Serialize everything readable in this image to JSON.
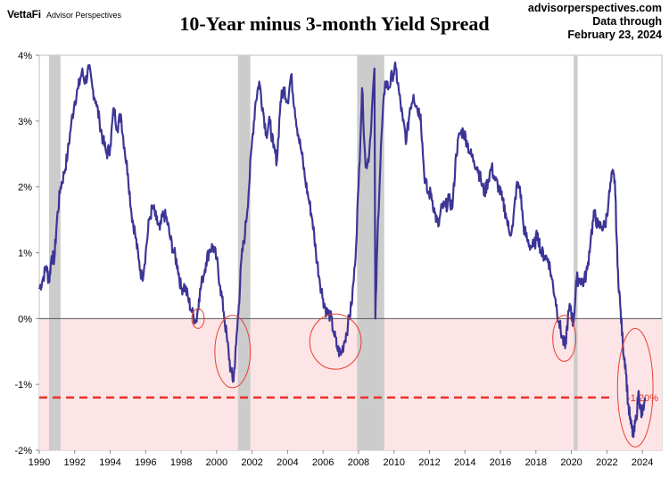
{
  "header": {
    "brand_logo": "VettaFi",
    "brand_sub": "Advisor Perspectives",
    "site": "advisorperspectives.com",
    "data_through_label": "Data through",
    "data_through_date": "February 23, 2024"
  },
  "chart_data": {
    "type": "line",
    "title": "10-Year minus 3-month Yield Spread",
    "xlabel": "",
    "ylabel": "",
    "xlim": [
      1990,
      2025.1
    ],
    "ylim": [
      -2,
      4
    ],
    "x_ticks": [
      "1990",
      "1992",
      "1994",
      "1996",
      "1998",
      "2000",
      "2002",
      "2004",
      "2006",
      "2008",
      "2010",
      "2012",
      "2014",
      "2016",
      "2018",
      "2020",
      "2022",
      "2024"
    ],
    "y_ticks": [
      {
        "value": 4,
        "label": "4%"
      },
      {
        "value": 3,
        "label": "3%"
      },
      {
        "value": 2,
        "label": "2%"
      },
      {
        "value": 1,
        "label": "1%"
      },
      {
        "value": 0,
        "label": "0%"
      },
      {
        "value": -1,
        "label": "-1%"
      },
      {
        "value": -2,
        "label": "-2%"
      }
    ],
    "grid": false,
    "recession_color": "#cccccc",
    "inversion_zone_color": "#fde4e6",
    "line_color": "#3c3596",
    "recessions": [
      {
        "start": 1990.55,
        "end": 1991.2
      },
      {
        "start": 2001.2,
        "end": 2001.9
      },
      {
        "start": 2007.92,
        "end": 2009.45
      },
      {
        "start": 2020.13,
        "end": 2020.35
      }
    ],
    "reference_line": {
      "value": -1.2,
      "label": "-1.20%",
      "color": "#e8312a"
    },
    "highlight_ellipses": [
      {
        "cx": 1998.95,
        "cy": 0,
        "rx": 0.35,
        "ry": 0.15
      },
      {
        "cx": 2000.9,
        "cy": -0.5,
        "rx": 1.0,
        "ry": 0.55
      },
      {
        "cx": 2006.7,
        "cy": -0.35,
        "rx": 1.45,
        "ry": 0.42
      },
      {
        "cx": 2019.6,
        "cy": -0.3,
        "rx": 0.65,
        "ry": 0.35
      },
      {
        "cx": 2023.6,
        "cy": -1.05,
        "rx": 1.0,
        "ry": 0.9
      }
    ],
    "series": [
      {
        "values": [
          [
            1990.0,
            0.45
          ],
          [
            1990.2,
            0.6
          ],
          [
            1990.4,
            0.8
          ],
          [
            1990.55,
            0.55
          ],
          [
            1990.7,
            0.95
          ],
          [
            1990.85,
            0.9
          ],
          [
            1991.0,
            1.5
          ],
          [
            1991.2,
            2.0
          ],
          [
            1991.4,
            2.2
          ],
          [
            1991.6,
            2.5
          ],
          [
            1991.8,
            2.95
          ],
          [
            1992.0,
            3.3
          ],
          [
            1992.2,
            3.5
          ],
          [
            1992.4,
            3.75
          ],
          [
            1992.6,
            3.6
          ],
          [
            1992.8,
            3.8
          ],
          [
            1993.0,
            3.5
          ],
          [
            1993.2,
            3.3
          ],
          [
            1993.4,
            3.0
          ],
          [
            1993.6,
            2.7
          ],
          [
            1993.8,
            2.5
          ],
          [
            1994.0,
            2.6
          ],
          [
            1994.2,
            3.2
          ],
          [
            1994.4,
            2.9
          ],
          [
            1994.6,
            3.1
          ],
          [
            1994.8,
            2.6
          ],
          [
            1995.0,
            2.2
          ],
          [
            1995.2,
            1.6
          ],
          [
            1995.4,
            1.3
          ],
          [
            1995.6,
            0.9
          ],
          [
            1995.8,
            0.6
          ],
          [
            1996.0,
            1.0
          ],
          [
            1996.2,
            1.5
          ],
          [
            1996.4,
            1.7
          ],
          [
            1996.6,
            1.5
          ],
          [
            1996.8,
            1.35
          ],
          [
            1997.0,
            1.6
          ],
          [
            1997.2,
            1.5
          ],
          [
            1997.4,
            1.2
          ],
          [
            1997.6,
            1.0
          ],
          [
            1997.8,
            0.8
          ],
          [
            1998.0,
            0.45
          ],
          [
            1998.2,
            0.5
          ],
          [
            1998.4,
            0.3
          ],
          [
            1998.6,
            0.1
          ],
          [
            1998.85,
            -0.05
          ],
          [
            1999.0,
            0.3
          ],
          [
            1999.2,
            0.6
          ],
          [
            1999.4,
            0.85
          ],
          [
            1999.6,
            1.05
          ],
          [
            1999.8,
            1.1
          ],
          [
            2000.0,
            0.9
          ],
          [
            2000.2,
            0.5
          ],
          [
            2000.4,
            0.1
          ],
          [
            2000.6,
            -0.35
          ],
          [
            2000.8,
            -0.8
          ],
          [
            2000.95,
            -0.95
          ],
          [
            2001.1,
            -0.4
          ],
          [
            2001.25,
            0.2
          ],
          [
            2001.4,
            0.9
          ],
          [
            2001.6,
            1.3
          ],
          [
            2001.8,
            1.9
          ],
          [
            2002.0,
            2.7
          ],
          [
            2002.2,
            3.3
          ],
          [
            2002.4,
            3.6
          ],
          [
            2002.6,
            3.2
          ],
          [
            2002.8,
            2.8
          ],
          [
            2003.0,
            3.0
          ],
          [
            2003.2,
            2.6
          ],
          [
            2003.4,
            2.4
          ],
          [
            2003.6,
            3.3
          ],
          [
            2003.8,
            3.5
          ],
          [
            2004.0,
            3.3
          ],
          [
            2004.2,
            3.7
          ],
          [
            2004.4,
            3.2
          ],
          [
            2004.6,
            2.8
          ],
          [
            2004.8,
            2.5
          ],
          [
            2005.0,
            2.1
          ],
          [
            2005.2,
            1.8
          ],
          [
            2005.4,
            1.5
          ],
          [
            2005.6,
            1.0
          ],
          [
            2005.8,
            0.6
          ],
          [
            2006.0,
            0.3
          ],
          [
            2006.2,
            0.1
          ],
          [
            2006.4,
            0.05
          ],
          [
            2006.6,
            -0.2
          ],
          [
            2006.8,
            -0.45
          ],
          [
            2007.0,
            -0.55
          ],
          [
            2007.2,
            -0.35
          ],
          [
            2007.4,
            -0.1
          ],
          [
            2007.6,
            0.2
          ],
          [
            2007.8,
            0.8
          ],
          [
            2008.0,
            2.0
          ],
          [
            2008.2,
            3.5
          ],
          [
            2008.4,
            2.3
          ],
          [
            2008.6,
            2.5
          ],
          [
            2008.9,
            3.8
          ],
          [
            2008.95,
            0.0
          ],
          [
            2009.1,
            1.5
          ],
          [
            2009.3,
            2.8
          ],
          [
            2009.5,
            3.6
          ],
          [
            2009.7,
            3.5
          ],
          [
            2009.9,
            3.7
          ],
          [
            2010.1,
            3.8
          ],
          [
            2010.3,
            3.4
          ],
          [
            2010.5,
            3.0
          ],
          [
            2010.7,
            2.7
          ],
          [
            2010.9,
            3.2
          ],
          [
            2011.1,
            3.4
          ],
          [
            2011.3,
            3.2
          ],
          [
            2011.5,
            3.1
          ],
          [
            2011.7,
            2.2
          ],
          [
            2011.9,
            1.9
          ],
          [
            2012.1,
            1.9
          ],
          [
            2012.3,
            1.6
          ],
          [
            2012.5,
            1.4
          ],
          [
            2012.7,
            1.7
          ],
          [
            2012.9,
            1.7
          ],
          [
            2013.1,
            1.8
          ],
          [
            2013.3,
            1.7
          ],
          [
            2013.5,
            2.5
          ],
          [
            2013.7,
            2.8
          ],
          [
            2013.9,
            2.85
          ],
          [
            2014.1,
            2.7
          ],
          [
            2014.3,
            2.5
          ],
          [
            2014.5,
            2.4
          ],
          [
            2014.7,
            2.3
          ],
          [
            2014.9,
            2.1
          ],
          [
            2015.1,
            1.9
          ],
          [
            2015.3,
            2.1
          ],
          [
            2015.5,
            2.3
          ],
          [
            2015.7,
            2.1
          ],
          [
            2015.9,
            2.0
          ],
          [
            2016.1,
            1.8
          ],
          [
            2016.3,
            1.6
          ],
          [
            2016.5,
            1.3
          ],
          [
            2016.7,
            1.4
          ],
          [
            2016.9,
            2.0
          ],
          [
            2017.1,
            2.0
          ],
          [
            2017.3,
            1.4
          ],
          [
            2017.5,
            1.2
          ],
          [
            2017.7,
            1.1
          ],
          [
            2017.9,
            1.1
          ],
          [
            2018.1,
            1.3
          ],
          [
            2018.3,
            1.0
          ],
          [
            2018.5,
            0.95
          ],
          [
            2018.7,
            0.9
          ],
          [
            2018.9,
            0.6
          ],
          [
            2019.1,
            0.3
          ],
          [
            2019.3,
            -0.05
          ],
          [
            2019.5,
            -0.3
          ],
          [
            2019.65,
            -0.45
          ],
          [
            2019.8,
            0.0
          ],
          [
            2019.95,
            0.2
          ],
          [
            2020.1,
            -0.1
          ],
          [
            2020.3,
            0.6
          ],
          [
            2020.5,
            0.6
          ],
          [
            2020.7,
            0.55
          ],
          [
            2020.9,
            0.75
          ],
          [
            2021.1,
            1.25
          ],
          [
            2021.3,
            1.6
          ],
          [
            2021.5,
            1.4
          ],
          [
            2021.7,
            1.4
          ],
          [
            2021.9,
            1.4
          ],
          [
            2022.1,
            1.8
          ],
          [
            2022.3,
            2.2
          ],
          [
            2022.45,
            2.1
          ],
          [
            2022.6,
            0.8
          ],
          [
            2022.75,
            0.2
          ],
          [
            2022.9,
            -0.4
          ],
          [
            2023.05,
            -0.7
          ],
          [
            2023.2,
            -1.3
          ],
          [
            2023.35,
            -1.6
          ],
          [
            2023.5,
            -1.8
          ],
          [
            2023.65,
            -1.5
          ],
          [
            2023.8,
            -1.1
          ],
          [
            2023.95,
            -1.5
          ],
          [
            2024.1,
            -1.3
          ],
          [
            2024.15,
            -1.2
          ]
        ]
      }
    ]
  }
}
